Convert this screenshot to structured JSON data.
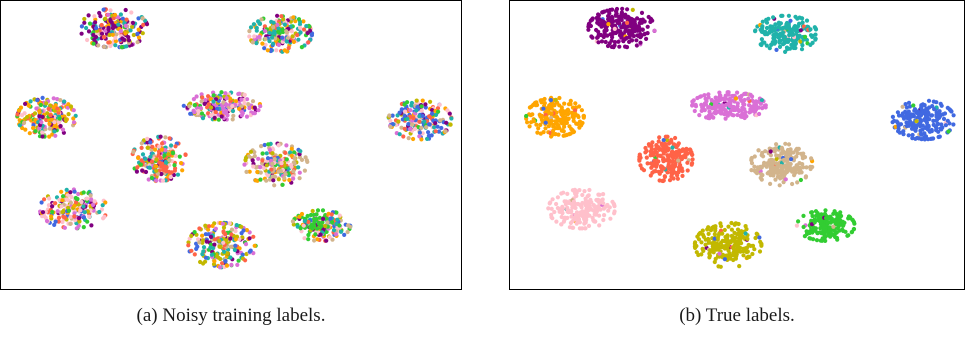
{
  "palette": {
    "purple": "#800080",
    "teal": "#20b2aa",
    "orchid": "#da70d6",
    "orange": "#ffa500",
    "royalblue": "#4169e1",
    "tomato": "#ff6347",
    "tan": "#d2b48c",
    "pink": "#ffc0cb",
    "olive": "#c2b800",
    "limegreen": "#32cd32"
  },
  "chart_data": [
    {
      "type": "scatter",
      "caption": "(a) Noisy training labels.",
      "grid": false,
      "axes_ticks": false,
      "coloring": "noisy",
      "clusters": [
        {
          "true_color": "purple",
          "cx": 0.24,
          "cy": 0.92,
          "rx": 0.075,
          "ry": 0.07,
          "n": 220
        },
        {
          "true_color": "teal",
          "cx": 0.61,
          "cy": 0.9,
          "rx": 0.07,
          "ry": 0.065,
          "n": 200
        },
        {
          "true_color": "orchid",
          "cx": 0.48,
          "cy": 0.64,
          "rx": 0.085,
          "ry": 0.05,
          "n": 200
        },
        {
          "true_color": "orange",
          "cx": 0.09,
          "cy": 0.6,
          "rx": 0.065,
          "ry": 0.07,
          "n": 200
        },
        {
          "true_color": "royalblue",
          "cx": 0.92,
          "cy": 0.59,
          "rx": 0.07,
          "ry": 0.07,
          "n": 200
        },
        {
          "true_color": "tomato",
          "cx": 0.34,
          "cy": 0.45,
          "rx": 0.06,
          "ry": 0.08,
          "n": 200
        },
        {
          "true_color": "tan",
          "cx": 0.6,
          "cy": 0.43,
          "rx": 0.07,
          "ry": 0.075,
          "n": 200
        },
        {
          "true_color": "pink",
          "cx": 0.15,
          "cy": 0.27,
          "rx": 0.075,
          "ry": 0.07,
          "n": 200
        },
        {
          "true_color": "olive",
          "cx": 0.48,
          "cy": 0.14,
          "rx": 0.075,
          "ry": 0.08,
          "n": 220
        },
        {
          "true_color": "limegreen",
          "cx": 0.7,
          "cy": 0.21,
          "rx": 0.065,
          "ry": 0.055,
          "n": 180
        }
      ]
    },
    {
      "type": "scatter",
      "caption": "(b) True labels.",
      "grid": false,
      "axes_ticks": false,
      "coloring": "true",
      "clusters": [
        {
          "true_color": "purple",
          "cx": 0.24,
          "cy": 0.92,
          "rx": 0.075,
          "ry": 0.07,
          "n": 220
        },
        {
          "true_color": "teal",
          "cx": 0.61,
          "cy": 0.9,
          "rx": 0.07,
          "ry": 0.065,
          "n": 200
        },
        {
          "true_color": "orchid",
          "cx": 0.48,
          "cy": 0.64,
          "rx": 0.085,
          "ry": 0.05,
          "n": 200
        },
        {
          "true_color": "orange",
          "cx": 0.09,
          "cy": 0.6,
          "rx": 0.065,
          "ry": 0.07,
          "n": 200
        },
        {
          "true_color": "royalblue",
          "cx": 0.92,
          "cy": 0.59,
          "rx": 0.07,
          "ry": 0.07,
          "n": 200
        },
        {
          "true_color": "tomato",
          "cx": 0.34,
          "cy": 0.45,
          "rx": 0.06,
          "ry": 0.08,
          "n": 200
        },
        {
          "true_color": "tan",
          "cx": 0.6,
          "cy": 0.43,
          "rx": 0.07,
          "ry": 0.075,
          "n": 200
        },
        {
          "true_color": "pink",
          "cx": 0.15,
          "cy": 0.27,
          "rx": 0.075,
          "ry": 0.07,
          "n": 200
        },
        {
          "true_color": "olive",
          "cx": 0.48,
          "cy": 0.14,
          "rx": 0.075,
          "ry": 0.08,
          "n": 220
        },
        {
          "true_color": "limegreen",
          "cx": 0.7,
          "cy": 0.21,
          "rx": 0.065,
          "ry": 0.055,
          "n": 180
        }
      ]
    }
  ]
}
